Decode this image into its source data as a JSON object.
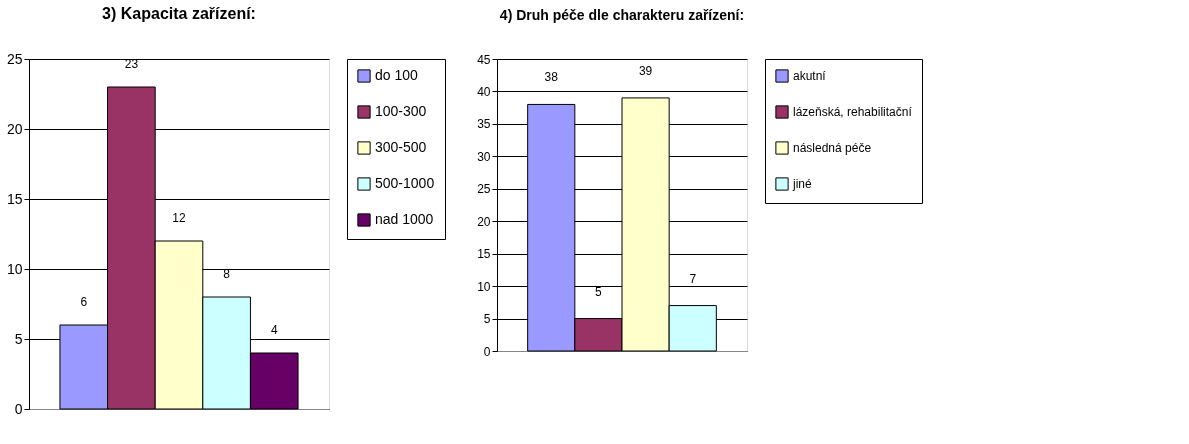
{
  "chart_data": [
    {
      "type": "bar",
      "title": "3) Kapacita zařízení:",
      "categories": [
        null
      ],
      "series": [
        {
          "name": "do 100",
          "color": "#9999ff",
          "values": [
            6
          ]
        },
        {
          "name": "100-300",
          "color": "#993366",
          "values": [
            23
          ]
        },
        {
          "name": "300-500",
          "color": "#ffffcc",
          "values": [
            12
          ]
        },
        {
          "name": "500-1000",
          "color": "#ccffff",
          "values": [
            8
          ]
        },
        {
          "name": "nad 1000",
          "color": "#660066",
          "values": [
            4
          ]
        }
      ],
      "ylim": [
        0,
        25
      ],
      "yticks": [
        0,
        5,
        10,
        15,
        20,
        25
      ],
      "grid": "y",
      "legend": "right",
      "data_labels": true
    },
    {
      "type": "bar",
      "title": "4) Druh péče dle charakteru zařízení:",
      "categories": [
        null
      ],
      "series": [
        {
          "name": "akutní",
          "color": "#9999ff",
          "values": [
            38
          ]
        },
        {
          "name": "lázeňská, rehabilitační",
          "color": "#993366",
          "values": [
            5
          ]
        },
        {
          "name": "následná péče",
          "color": "#ffffcc",
          "values": [
            39
          ]
        },
        {
          "name": "jiné",
          "color": "#ccffff",
          "values": [
            7
          ]
        }
      ],
      "ylim": [
        0,
        45
      ],
      "yticks": [
        0,
        5,
        10,
        15,
        20,
        25,
        30,
        35,
        40,
        45
      ],
      "grid": "y",
      "legend": "right",
      "data_labels": true
    }
  ]
}
